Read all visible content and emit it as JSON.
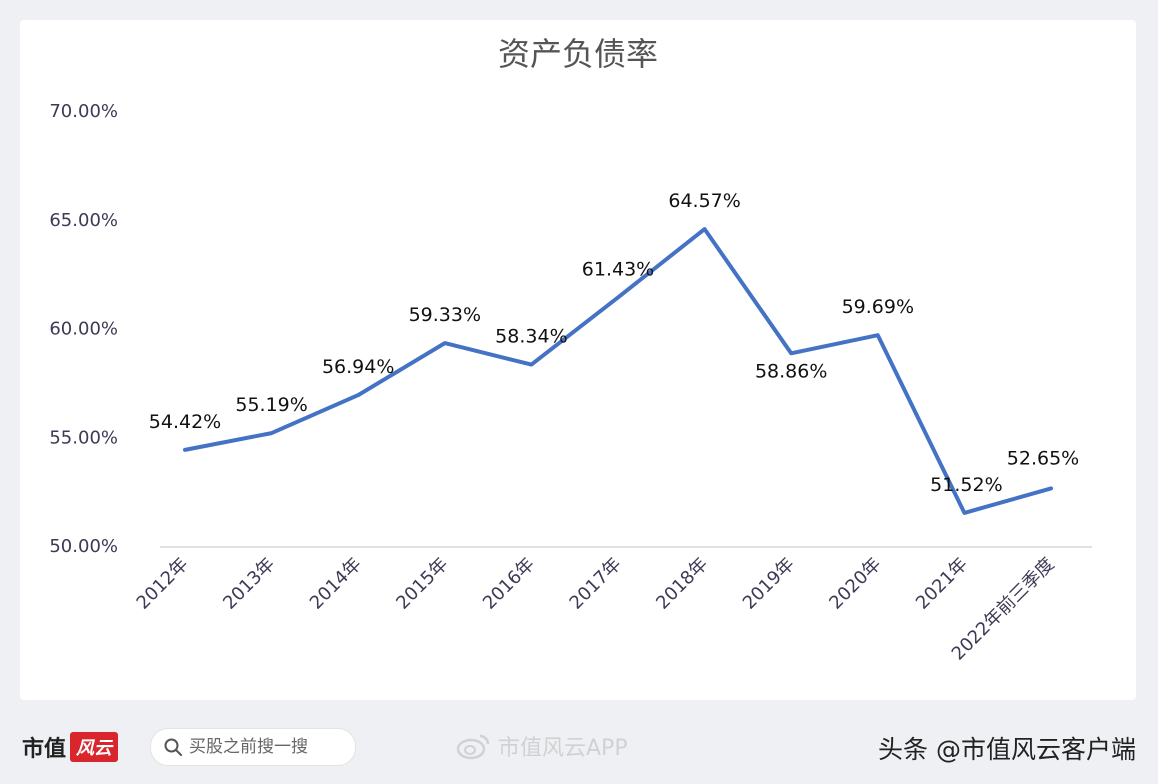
{
  "chart_data": {
    "type": "line",
    "title": "资产负债率",
    "categories": [
      "2012年",
      "2013年",
      "2014年",
      "2015年",
      "2016年",
      "2017年",
      "2018年",
      "2019年",
      "2020年",
      "2021年",
      "2022年前三季度"
    ],
    "values": [
      54.42,
      55.19,
      56.94,
      59.33,
      58.34,
      61.43,
      64.57,
      58.86,
      59.69,
      51.52,
      52.65
    ],
    "data_labels": [
      "54.42%",
      "55.19%",
      "56.94%",
      "59.33%",
      "58.34%",
      "61.43%",
      "64.57%",
      "58.86%",
      "59.69%",
      "51.52%",
      "52.65%"
    ],
    "yticks": [
      "50.00%",
      "55.00%",
      "60.00%",
      "65.00%",
      "70.00%"
    ],
    "ylim": [
      50,
      70
    ],
    "xlabel": "",
    "ylabel": "",
    "grid": false,
    "line_color": "#4472c4"
  },
  "footer": {
    "brand": "市值",
    "brand_badge": "风云",
    "search_placeholder": "买股之前搜一搜",
    "weibo_text": "市值风云APP",
    "source": "头条 @市值风云客户端"
  }
}
